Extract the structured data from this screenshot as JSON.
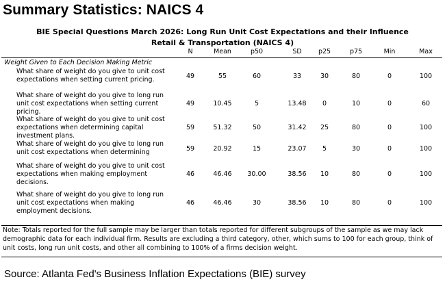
{
  "page_title": "Summary Statistics: NAICS 4",
  "table_title_1": "BIE Special Questions March 2026: Long Run Unit Cost Expectations and their Influence",
  "table_title_2": "Retail & Transportation (NAICS 4)",
  "columns": [
    "N",
    "Mean",
    "p50",
    "SD",
    "p25",
    "p75",
    "Min",
    "Max"
  ],
  "section_label": "Weight Given to Each Decision Making Metric",
  "rows": [
    {
      "lines": [
        "What share of weight do you give to unit cost",
        "expectations when setting current pricing."
      ],
      "values": [
        "49",
        "55",
        "60",
        "33",
        "30",
        "80",
        "0",
        "100"
      ]
    },
    {
      "lines": [
        "What share of weight do you give to long run",
        "unit cost expectations when setting current",
        "pricing."
      ],
      "values": [
        "49",
        "10.45",
        "5",
        "13.48",
        "0",
        "10",
        "0",
        "60"
      ]
    },
    {
      "lines": [
        "What share of weight do you give to unit cost",
        "expectations when determining capital",
        "investment plans."
      ],
      "values": [
        "59",
        "51.32",
        "50",
        "31.42",
        "25",
        "80",
        "0",
        "100"
      ]
    },
    {
      "lines": [
        "What share of weight do you give to long run",
        "unit cost expectations when determining"
      ],
      "values": [
        "59",
        "20.92",
        "15",
        "23.07",
        "5",
        "30",
        "0",
        "100"
      ]
    },
    {
      "lines": [
        "What share of weight do you give to unit cost",
        "expectations when making employment",
        "decisions."
      ],
      "values": [
        "46",
        "46.46",
        "30.00",
        "38.56",
        "10",
        "80",
        "0",
        "100"
      ]
    },
    {
      "lines": [
        "What share of weight do you give to long run",
        "unit cost expectations when making",
        "employment decisions."
      ],
      "values": [
        "46",
        "46.46",
        "30",
        "38.56",
        "10",
        "80",
        "0",
        "100"
      ]
    }
  ],
  "note": "Note: Totals reported for the full sample may be larger than totals reported for different subgroups of the sample as we may lack demographic data for each individual firm. Results are excluding a third category, other, which sums to 100 for each group, think of unit costs, long run unit costs, and other all combining to 100% of a firms decision weight.",
  "source": "Source: Atlanta Fed's Business Inflation Expectations (BIE) survey"
}
